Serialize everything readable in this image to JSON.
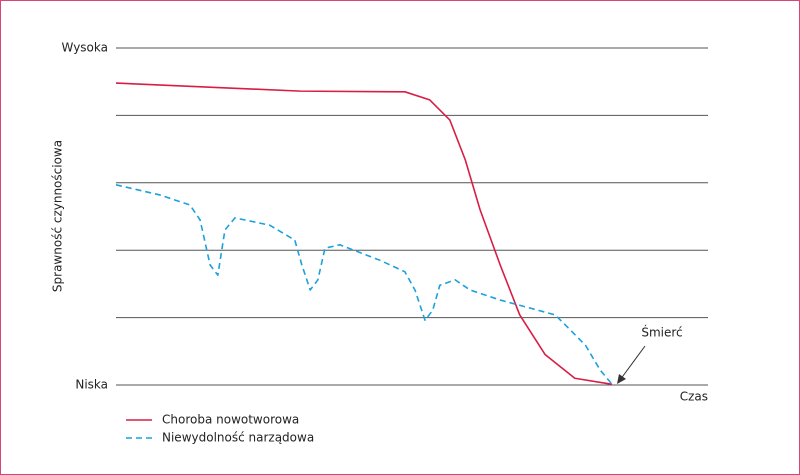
{
  "chart_data": {
    "type": "line",
    "y_label": "Sprawność czynnościowa",
    "x_label": "Czas",
    "annotation": "Śmierć",
    "xlim": [
      0,
      100
    ],
    "ylim": [
      0,
      5
    ],
    "yticks": [
      {
        "value": 0,
        "label": "Niska"
      },
      {
        "value": 1,
        "label": null
      },
      {
        "value": 2,
        "label": null
      },
      {
        "value": 3,
        "label": null
      },
      {
        "value": 4,
        "label": null
      },
      {
        "value": 5,
        "label": "Wysoka"
      }
    ],
    "grid": true,
    "series": [
      {
        "name": "Choroba nowotworowa",
        "color": "#d81e45",
        "dash": false,
        "x": [
          0,
          31.1,
          48.8,
          53,
          56.4,
          59,
          61.5,
          64.9,
          68.2,
          72.5,
          77.5,
          83.8
        ],
        "values": [
          4.48,
          4.36,
          4.35,
          4.23,
          3.93,
          3.34,
          2.6,
          1.78,
          1.04,
          0.45,
          0.1,
          0.01
        ]
      },
      {
        "name": "Niewydolność narządowa",
        "color": "#1ba1dc",
        "dash": true,
        "x": [
          0,
          7.4,
          12.5,
          14.2,
          15.9,
          17.2,
          18.4,
          20.1,
          26,
          30.2,
          31.4,
          32.8,
          34.1,
          35.3,
          37.8,
          44.6,
          48.8,
          50.5,
          52.2,
          53.5,
          54.7,
          57.3,
          59.8,
          64.9,
          70,
          74.2,
          76.7,
          79.3,
          81.8,
          83.8
        ],
        "values": [
          2.97,
          2.82,
          2.67,
          2.45,
          1.78,
          1.63,
          2.3,
          2.48,
          2.37,
          2.15,
          1.78,
          1.41,
          1.56,
          2.03,
          2.08,
          1.85,
          1.68,
          1.41,
          0.96,
          1.11,
          1.48,
          1.56,
          1.41,
          1.26,
          1.14,
          1.04,
          0.82,
          0.59,
          0.22,
          0.01
        ]
      }
    ]
  }
}
